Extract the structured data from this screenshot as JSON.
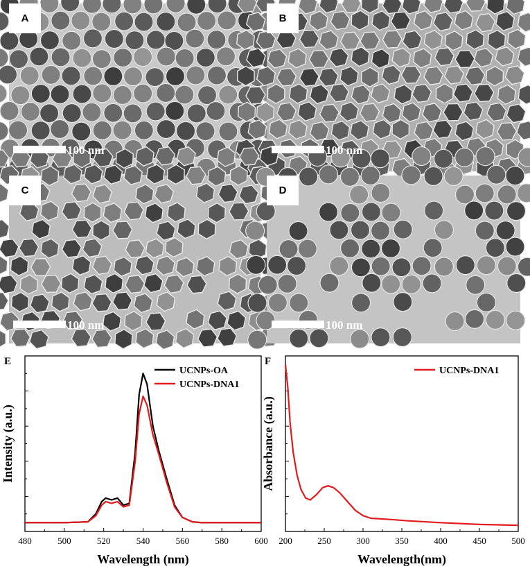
{
  "panels": {
    "A": {
      "label": "A",
      "scale": "100 nm",
      "shape": "round",
      "bg": "#c9c9c9"
    },
    "B": {
      "label": "B",
      "scale": "100 nm",
      "shape": "hex",
      "bg": "#b0b0b0"
    },
    "C": {
      "label": "C",
      "scale": "100 nm",
      "shape": "hex",
      "bg": "#bdbdbd"
    },
    "D": {
      "label": "D",
      "scale": "100 nm",
      "shape": "round",
      "bg": "#c4c4c4"
    }
  },
  "charts": {
    "E": {
      "label": "E"
    },
    "F": {
      "label": "F"
    }
  },
  "chart_data": [
    {
      "panel": "E",
      "type": "line",
      "xlabel": "Wavelength (nm)",
      "ylabel": "Intensity (a.u.)",
      "xlim": [
        480,
        600
      ],
      "xticks": [
        "480",
        "500",
        "520",
        "540",
        "560",
        "580",
        "600"
      ],
      "ylim": [
        0,
        1.0
      ],
      "legend_position": "top-right",
      "series": [
        {
          "name": "UCNPs-OA",
          "color": "#000000",
          "x": [
            480,
            500,
            512,
            516,
            519,
            521,
            524,
            527,
            530,
            533,
            536,
            538,
            540,
            542,
            545,
            548,
            552,
            556,
            560,
            565,
            570,
            580,
            600
          ],
          "y": [
            0.05,
            0.05,
            0.055,
            0.1,
            0.17,
            0.19,
            0.18,
            0.19,
            0.15,
            0.16,
            0.45,
            0.78,
            0.9,
            0.84,
            0.6,
            0.46,
            0.3,
            0.15,
            0.08,
            0.055,
            0.05,
            0.05,
            0.05
          ]
        },
        {
          "name": "UCNPs-DNA1",
          "color": "#e41a1c",
          "x": [
            480,
            500,
            512,
            516,
            519,
            521,
            524,
            527,
            530,
            533,
            536,
            538,
            540,
            542,
            545,
            548,
            552,
            556,
            560,
            565,
            570,
            580,
            600
          ],
          "y": [
            0.05,
            0.05,
            0.055,
            0.09,
            0.15,
            0.17,
            0.16,
            0.17,
            0.14,
            0.15,
            0.4,
            0.67,
            0.77,
            0.72,
            0.55,
            0.44,
            0.28,
            0.14,
            0.08,
            0.055,
            0.05,
            0.05,
            0.05
          ]
        }
      ]
    },
    {
      "panel": "F",
      "type": "line",
      "xlabel": "Wavelength(nm)",
      "ylabel": "Absorbance (a.u.)",
      "xlim": [
        200,
        500
      ],
      "xticks": [
        "200",
        "250",
        "300",
        "350",
        "400",
        "450",
        "500"
      ],
      "ylim": [
        0,
        1.0
      ],
      "legend_position": "top-right",
      "series": [
        {
          "name": "UCNPs-DNA1",
          "color": "#e41a1c",
          "x": [
            200,
            203,
            206,
            210,
            215,
            220,
            226,
            232,
            240,
            248,
            255,
            262,
            270,
            280,
            290,
            300,
            310,
            330,
            360,
            400,
            450,
            500
          ],
          "y": [
            0.95,
            0.82,
            0.62,
            0.45,
            0.32,
            0.24,
            0.19,
            0.18,
            0.21,
            0.25,
            0.26,
            0.25,
            0.22,
            0.17,
            0.12,
            0.09,
            0.075,
            0.07,
            0.06,
            0.05,
            0.04,
            0.035
          ]
        }
      ]
    }
  ]
}
